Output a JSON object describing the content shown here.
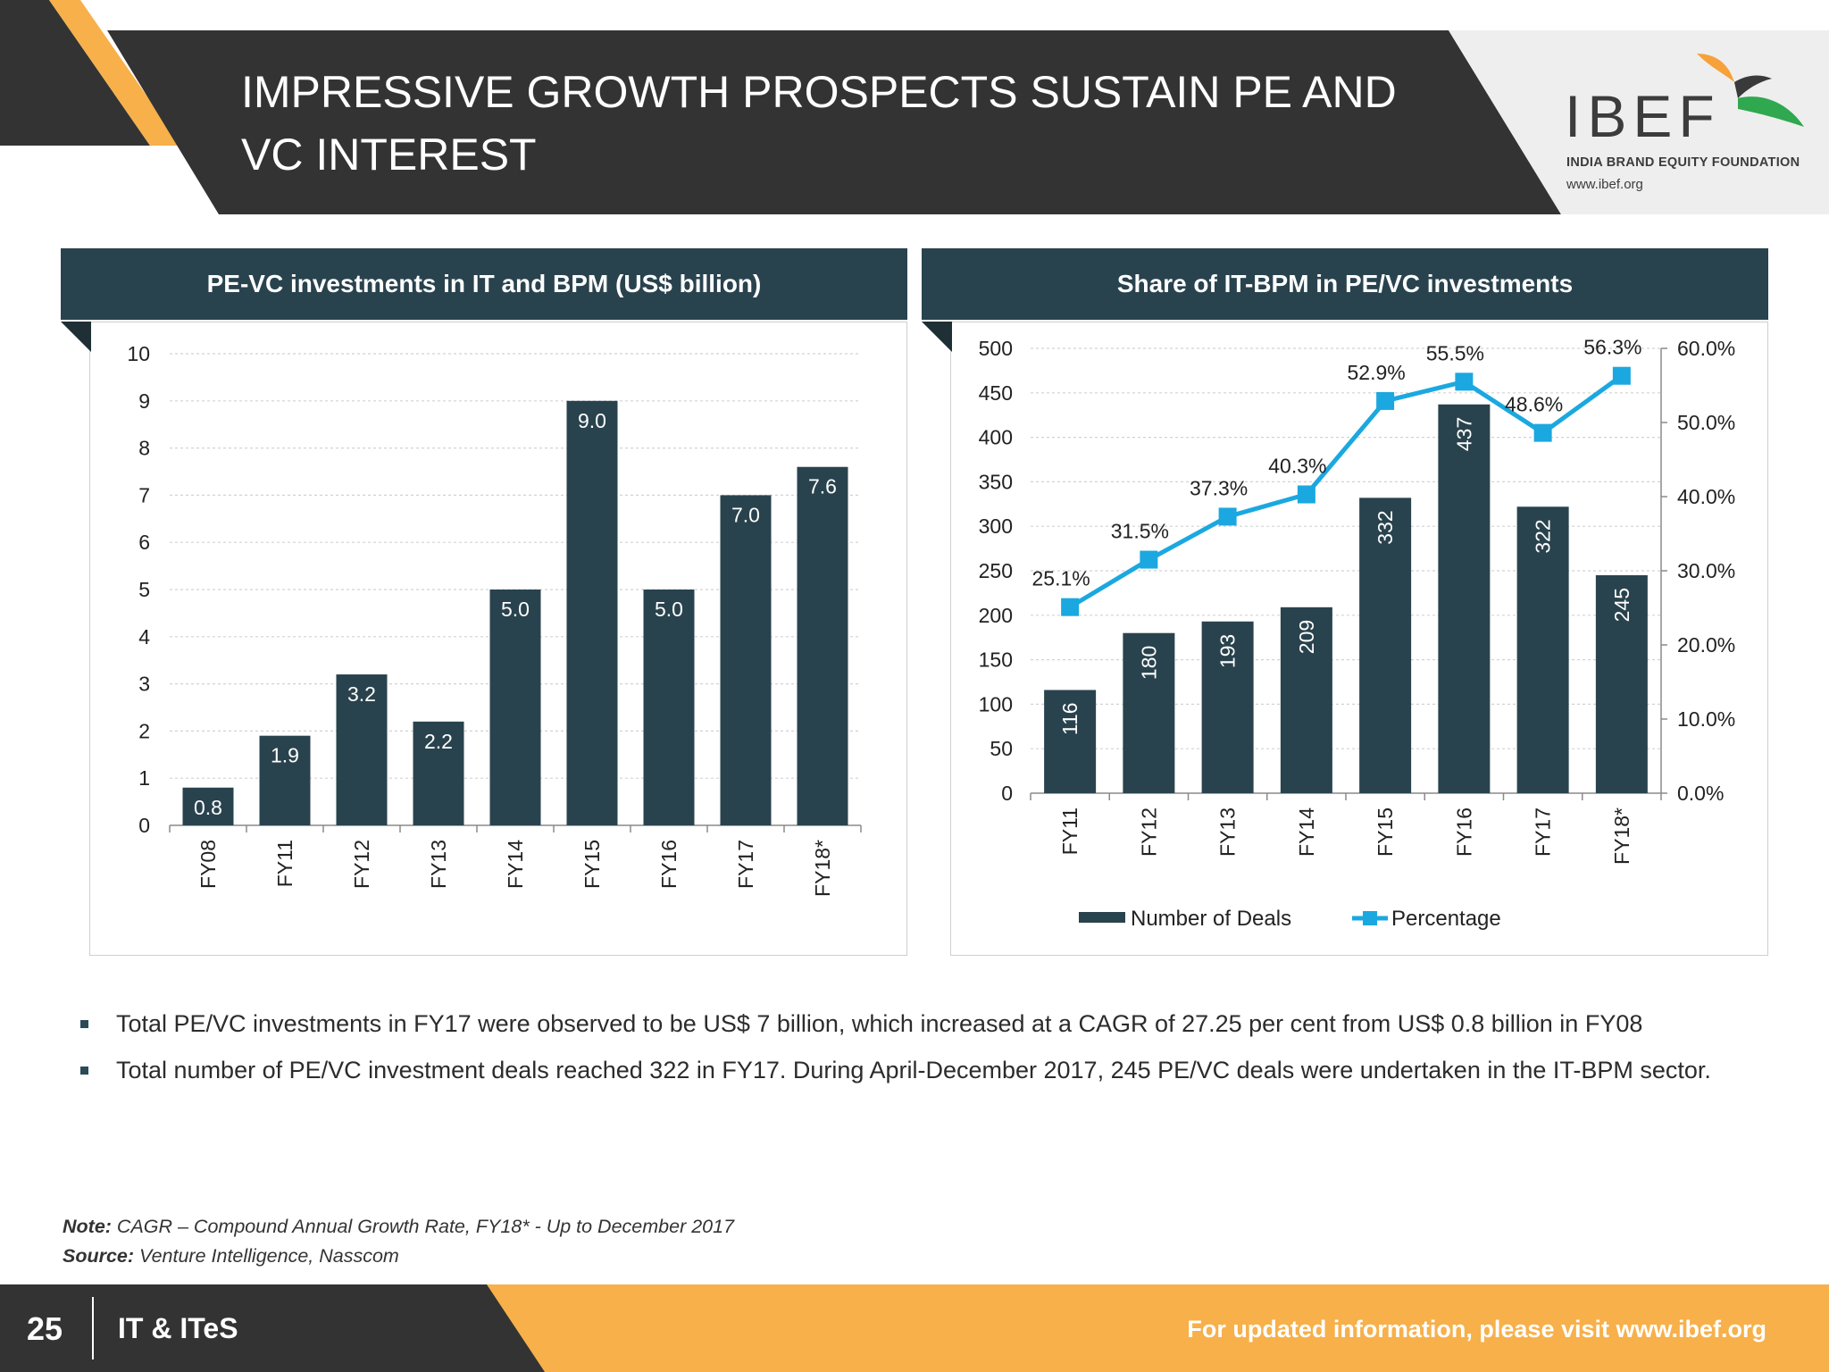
{
  "title": "IMPRESSIVE GROWTH PROSPECTS SUSTAIN PE AND VC INTEREST",
  "logo": {
    "name": "IBEF",
    "subtitle": "INDIA BRAND EQUITY FOUNDATION",
    "url": "www.ibef.org"
  },
  "colors": {
    "header_dark": "#333333",
    "bar": "#29434e",
    "line": "#1ba8e0",
    "accent_orange": "#f7b04a",
    "footer_dark": "#333333"
  },
  "chart_data": [
    {
      "type": "bar",
      "title": "PE-VC investments in IT and BPM (US$ billion)",
      "categories": [
        "FY08",
        "FY11",
        "FY12",
        "FY13",
        "FY14",
        "FY15",
        "FY16",
        "FY17",
        "FY18*"
      ],
      "values": [
        0.8,
        1.9,
        3.2,
        2.2,
        5.0,
        9.0,
        5.0,
        7.0,
        7.6
      ],
      "data_labels": [
        "0.8",
        "1.9",
        "3.2",
        "2.2",
        "5.0",
        "9.0",
        "5.0",
        "7.0",
        "7.6"
      ],
      "ylim": [
        0,
        10
      ],
      "yticks": [
        "0",
        "1",
        "2",
        "3",
        "4",
        "5",
        "6",
        "7",
        "8",
        "9",
        "10"
      ],
      "grid": true
    },
    {
      "type": "bar+line",
      "title": "Share of IT-BPM in PE/VC investments",
      "categories": [
        "FY11",
        "FY12",
        "FY13",
        "FY14",
        "FY15",
        "FY16",
        "FY17",
        "FY18*"
      ],
      "series": [
        {
          "name": "Number of Deals",
          "type": "bar",
          "axis": "left",
          "values": [
            116,
            180,
            193,
            209,
            332,
            437,
            322,
            245
          ],
          "data_labels": [
            "116",
            "180",
            "193",
            "209",
            "332",
            "437",
            "322",
            "245"
          ]
        },
        {
          "name": "Percentage",
          "type": "line",
          "axis": "right",
          "values": [
            25.1,
            31.5,
            37.3,
            40.3,
            52.9,
            55.5,
            48.6,
            56.3
          ],
          "data_labels": [
            "25.1%",
            "31.5%",
            "37.3%",
            "40.3%",
            "52.9%",
            "55.5%",
            "48.6%",
            "56.3%"
          ]
        }
      ],
      "ylim_left": [
        0,
        500
      ],
      "yticks_left": [
        "0",
        "50",
        "100",
        "150",
        "200",
        "250",
        "300",
        "350",
        "400",
        "450",
        "500"
      ],
      "ylim_right": [
        0,
        60
      ],
      "yticks_right": [
        "0.0%",
        "10.0%",
        "20.0%",
        "30.0%",
        "40.0%",
        "50.0%",
        "60.0%"
      ],
      "legend": "bottom",
      "grid": true
    }
  ],
  "bullets": [
    "Total PE/VC investments in FY17 were observed to be US$ 7 billion, which increased at a CAGR of 27.25 per cent from US$ 0.8 billion in FY08",
    "Total number of PE/VC investment deals reached 322 in FY17. During April-December 2017, 245 PE/VC deals were undertaken in the IT-BPM sector."
  ],
  "note": {
    "label": "Note:",
    "text": " CAGR – Compound Annual Growth Rate, FY18* - Up to December 2017"
  },
  "source": {
    "label": "Source:",
    "text": " Venture Intelligence, Nasscom"
  },
  "footer": {
    "page": "25",
    "section": "IT & ITeS",
    "cta": "For updated information, please visit www.ibef.org"
  }
}
